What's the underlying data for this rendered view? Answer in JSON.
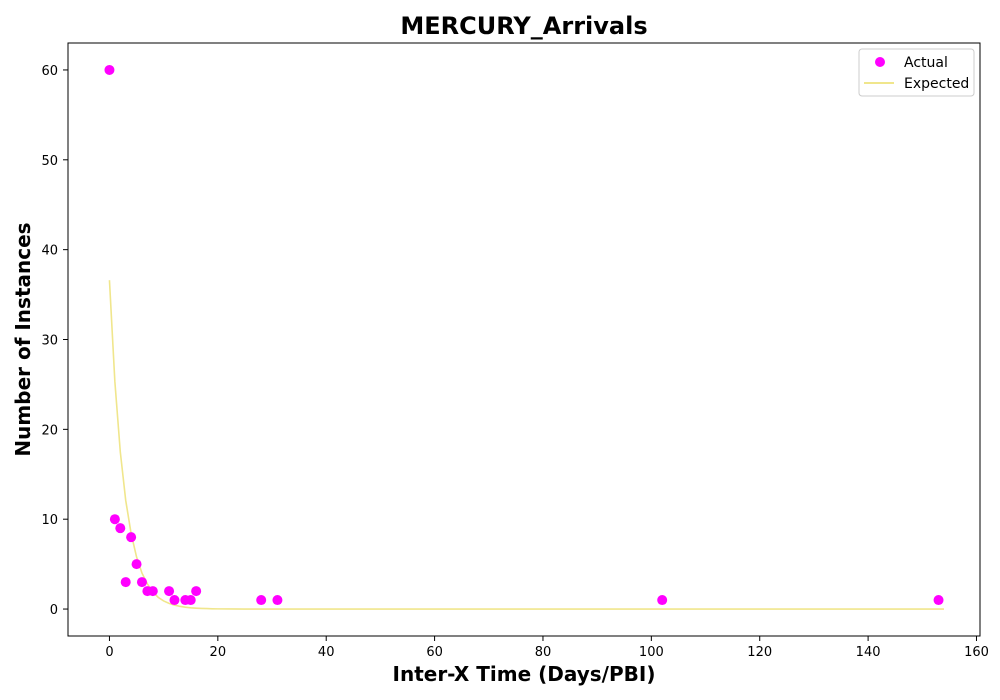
{
  "chart_data": {
    "type": "scatter",
    "title": "MERCURY_Arrivals",
    "xlabel": "Inter-X Time (Days/PBI)",
    "ylabel": "Number of Instances",
    "xlim": [
      -7.65,
      160.65
    ],
    "ylim": [
      -3,
      63
    ],
    "xticks": [
      0,
      20,
      40,
      60,
      80,
      100,
      120,
      140,
      160
    ],
    "yticks": [
      0,
      10,
      20,
      30,
      40,
      50,
      60
    ],
    "legend_position": "top-right",
    "grid": false,
    "series": [
      {
        "name": "Actual",
        "kind": "scatter",
        "color": "#ff00ff",
        "points": [
          [
            0,
            60
          ],
          [
            1,
            10
          ],
          [
            2,
            9
          ],
          [
            3,
            3
          ],
          [
            4,
            8
          ],
          [
            5,
            5
          ],
          [
            6,
            3
          ],
          [
            7,
            2
          ],
          [
            8,
            2
          ],
          [
            11,
            2
          ],
          [
            12,
            1
          ],
          [
            14,
            1
          ],
          [
            15,
            1
          ],
          [
            16,
            2
          ],
          [
            28,
            1
          ],
          [
            31,
            1
          ],
          [
            102,
            1
          ],
          [
            153,
            1
          ]
        ]
      },
      {
        "name": "Expected",
        "kind": "line",
        "color": "#f0e68c",
        "points": [
          [
            0,
            36.6
          ],
          [
            1,
            25.3
          ],
          [
            2,
            17.5
          ],
          [
            3,
            12.1
          ],
          [
            4,
            8.4
          ],
          [
            5,
            5.8
          ],
          [
            6,
            4.0
          ],
          [
            7,
            2.8
          ],
          [
            8,
            1.9
          ],
          [
            9,
            1.3
          ],
          [
            10,
            0.9
          ],
          [
            11,
            0.63
          ],
          [
            12,
            0.44
          ],
          [
            13,
            0.3
          ],
          [
            14,
            0.21
          ],
          [
            15,
            0.14
          ],
          [
            16,
            0.1
          ],
          [
            17,
            0.07
          ],
          [
            18,
            0.05
          ],
          [
            19,
            0.03
          ],
          [
            20,
            0.02
          ],
          [
            22,
            0.01
          ],
          [
            25,
            0.0
          ],
          [
            30,
            0.0
          ],
          [
            40,
            0.0
          ],
          [
            60,
            0.0
          ],
          [
            80,
            0.0
          ],
          [
            100,
            0.0
          ],
          [
            120,
            0.0
          ],
          [
            140,
            0.0
          ],
          [
            154,
            0.0
          ]
        ]
      }
    ]
  }
}
